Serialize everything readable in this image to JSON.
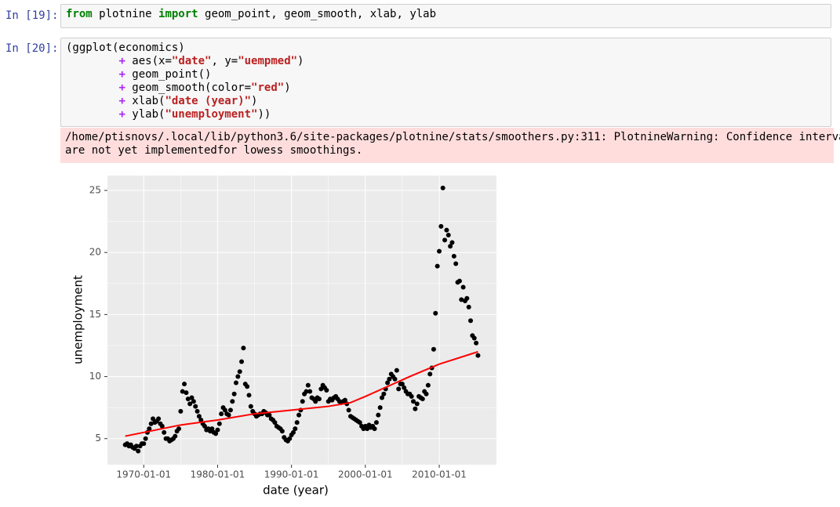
{
  "cells": [
    {
      "prompt": "In [19]:",
      "lines": [
        [
          {
            "text": "from",
            "color": "#008000"
          },
          {
            "text": " plotnine "
          },
          {
            "text": "import",
            "color": "#008000"
          },
          {
            "text": " geom_point, geom_smooth, xlab, ylab"
          }
        ]
      ]
    },
    {
      "prompt": "In [20]:",
      "lines": [
        [
          {
            "text": "(ggplot(economics)"
          }
        ],
        [
          {
            "text": "        "
          },
          {
            "text": "+",
            "color": "#aa22ff"
          },
          {
            "text": " aes(x="
          },
          {
            "text": "\"date\"",
            "color": "#ba2121"
          },
          {
            "text": ", y="
          },
          {
            "text": "\"uempmed\"",
            "color": "#ba2121"
          },
          {
            "text": ")"
          }
        ],
        [
          {
            "text": "        "
          },
          {
            "text": "+",
            "color": "#aa22ff"
          },
          {
            "text": " geom_point()"
          }
        ],
        [
          {
            "text": "        "
          },
          {
            "text": "+",
            "color": "#aa22ff"
          },
          {
            "text": " geom_smooth(color="
          },
          {
            "text": "\"red\"",
            "color": "#ba2121"
          },
          {
            "text": ")"
          }
        ],
        [
          {
            "text": "        "
          },
          {
            "text": "+",
            "color": "#aa22ff"
          },
          {
            "text": " xlab("
          },
          {
            "text": "\"date (year)\"",
            "color": "#ba2121"
          },
          {
            "text": ")"
          }
        ],
        [
          {
            "text": "        "
          },
          {
            "text": "+",
            "color": "#aa22ff"
          },
          {
            "text": " ylab("
          },
          {
            "text": "\"unemployment\"",
            "color": "#ba2121"
          },
          {
            "text": "))"
          }
        ]
      ],
      "warning": [
        "/home/ptisnovs/.local/lib/python3.6/site-packages/plotnine/stats/smoothers.py:311: PlotnineWarning: Confidence intervals",
        "are not yet implementedfor lowess smoothings."
      ]
    }
  ],
  "chart_data": {
    "type": "scatter",
    "xlabel": "date (year)",
    "ylabel": "unemployment",
    "xlim": [
      "1965-02-01",
      "2017-10-01"
    ],
    "ylim": [
      2.9,
      26.2
    ],
    "xticks": [
      "1970-01-01",
      "1980-01-01",
      "1990-01-01",
      "2000-01-01",
      "2010-01-01"
    ],
    "yticks": [
      5,
      10,
      15,
      20,
      25
    ],
    "grid": true,
    "background": "#ebebeb",
    "series": [
      {
        "color": "#000000",
        "x": [
          "1967-07-01",
          "1967-10-01",
          "1968-01-01",
          "1968-04-01",
          "1968-07-01",
          "1968-10-01",
          "1969-01-01",
          "1969-04-01",
          "1969-07-01",
          "1969-10-01",
          "1970-01-01",
          "1970-04-01",
          "1970-07-01",
          "1970-10-01",
          "1971-01-01",
          "1971-04-01",
          "1971-07-01",
          "1971-10-01",
          "1972-01-01",
          "1972-04-01",
          "1972-07-01",
          "1972-10-01",
          "1973-01-01",
          "1973-04-01",
          "1973-07-01",
          "1973-10-01",
          "1974-01-01",
          "1974-04-01",
          "1974-07-01",
          "1974-10-01",
          "1975-01-01",
          "1975-04-01",
          "1975-07-01",
          "1975-10-01",
          "1976-01-01",
          "1976-04-01",
          "1976-07-01",
          "1976-10-01",
          "1977-01-01",
          "1977-04-01",
          "1977-07-01",
          "1977-10-01",
          "1978-01-01",
          "1978-04-01",
          "1978-07-01",
          "1978-10-01",
          "1979-01-01",
          "1979-04-01",
          "1979-07-01",
          "1979-10-01",
          "1980-01-01",
          "1980-04-01",
          "1980-07-01",
          "1980-10-01",
          "1981-01-01",
          "1981-04-01",
          "1981-07-01",
          "1981-10-01",
          "1982-01-01",
          "1982-04-01",
          "1982-07-01",
          "1982-10-01",
          "1983-01-01",
          "1983-04-01",
          "1983-07-01",
          "1983-10-01",
          "1984-01-01",
          "1984-04-01",
          "1984-07-01",
          "1984-10-01",
          "1985-01-01",
          "1985-04-01",
          "1985-07-01",
          "1985-10-01",
          "1986-01-01",
          "1986-04-01",
          "1986-07-01",
          "1986-10-01",
          "1987-01-01",
          "1987-04-01",
          "1987-07-01",
          "1987-10-01",
          "1988-01-01",
          "1988-04-01",
          "1988-07-01",
          "1988-10-01",
          "1989-01-01",
          "1989-04-01",
          "1989-07-01",
          "1989-10-01",
          "1990-01-01",
          "1990-04-01",
          "1990-07-01",
          "1990-10-01",
          "1991-01-01",
          "1991-04-01",
          "1991-07-01",
          "1991-10-01",
          "1992-01-01",
          "1992-04-01",
          "1992-07-01",
          "1992-10-01",
          "1993-01-01",
          "1993-04-01",
          "1993-07-01",
          "1993-10-01",
          "1994-01-01",
          "1994-04-01",
          "1994-07-01",
          "1994-10-01",
          "1995-01-01",
          "1995-04-01",
          "1995-07-01",
          "1995-10-01",
          "1996-01-01",
          "1996-04-01",
          "1996-07-01",
          "1996-10-01",
          "1997-01-01",
          "1997-04-01",
          "1997-07-01",
          "1997-10-01",
          "1998-01-01",
          "1998-04-01",
          "1998-07-01",
          "1998-10-01",
          "1999-01-01",
          "1999-04-01",
          "1999-07-01",
          "1999-10-01",
          "2000-01-01",
          "2000-04-01",
          "2000-07-01",
          "2000-10-01",
          "2001-01-01",
          "2001-04-01",
          "2001-07-01",
          "2001-10-01",
          "2002-01-01",
          "2002-04-01",
          "2002-07-01",
          "2002-10-01",
          "2003-01-01",
          "2003-04-01",
          "2003-07-01",
          "2003-10-01",
          "2004-01-01",
          "2004-04-01",
          "2004-07-01",
          "2004-10-01",
          "2005-01-01",
          "2005-04-01",
          "2005-07-01",
          "2005-10-01",
          "2006-01-01",
          "2006-04-01",
          "2006-07-01",
          "2006-10-01",
          "2007-01-01",
          "2007-04-01",
          "2007-07-01",
          "2007-10-01",
          "2008-01-01",
          "2008-04-01",
          "2008-07-01",
          "2008-10-01",
          "2009-01-01",
          "2009-04-01",
          "2009-07-01",
          "2009-10-01",
          "2010-01-01",
          "2010-04-01",
          "2010-07-01",
          "2010-10-01",
          "2011-01-01",
          "2011-04-01",
          "2011-07-01",
          "2011-10-01",
          "2012-01-01",
          "2012-04-01",
          "2012-07-01",
          "2012-10-01",
          "2013-01-01",
          "2013-04-01",
          "2013-07-01",
          "2013-10-01",
          "2014-01-01",
          "2014-04-01",
          "2014-07-01",
          "2014-10-01",
          "2015-01-01",
          "2015-04-01"
        ],
        "values": [
          4.5,
          4.6,
          4.4,
          4.5,
          4.3,
          4.2,
          4.4,
          4.0,
          4.4,
          4.6,
          4.6,
          5.0,
          5.5,
          5.8,
          6.2,
          6.6,
          6.3,
          6.4,
          6.6,
          6.2,
          6.0,
          5.5,
          5.0,
          5.0,
          4.8,
          4.9,
          5.0,
          5.2,
          5.6,
          5.8,
          7.2,
          8.8,
          9.4,
          8.7,
          8.2,
          7.8,
          8.3,
          8.0,
          7.6,
          7.2,
          6.8,
          6.5,
          6.2,
          6.0,
          5.7,
          5.8,
          5.6,
          5.8,
          5.5,
          5.4,
          5.7,
          6.2,
          7.0,
          7.5,
          7.3,
          7.0,
          6.9,
          7.3,
          8.0,
          8.6,
          9.5,
          10.0,
          10.4,
          11.2,
          12.3,
          9.4,
          9.2,
          8.5,
          7.6,
          7.2,
          7.0,
          6.8,
          6.9,
          7.0,
          7.0,
          7.2,
          7.1,
          6.9,
          6.9,
          6.6,
          6.5,
          6.3,
          6.0,
          5.9,
          5.8,
          5.6,
          5.1,
          4.9,
          4.8,
          5.0,
          5.3,
          5.5,
          5.8,
          6.3,
          6.9,
          7.3,
          8.0,
          8.6,
          8.8,
          9.3,
          8.8,
          8.3,
          8.2,
          8.0,
          8.3,
          8.2,
          9.0,
          9.3,
          9.1,
          8.9,
          8.0,
          8.2,
          8.1,
          8.3,
          8.4,
          8.2,
          8.0,
          7.9,
          8.0,
          8.1,
          7.8,
          7.3,
          6.8,
          6.7,
          6.6,
          6.5,
          6.4,
          6.3,
          6.0,
          5.8,
          6.0,
          5.8,
          6.1,
          5.9,
          6.0,
          5.8,
          6.3,
          6.9,
          7.5,
          8.3,
          8.6,
          9.0,
          9.5,
          9.8,
          10.2,
          10.0,
          9.8,
          10.5,
          9.0,
          9.4,
          9.4,
          9.1,
          8.8,
          8.6,
          8.6,
          8.4,
          8.0,
          7.4,
          7.8,
          8.4,
          8.3,
          8.2,
          8.8,
          8.6,
          9.3,
          10.2,
          10.7,
          12.2,
          15.1,
          18.9,
          20.1,
          22.1,
          25.2,
          21.0,
          21.8,
          21.4,
          20.5,
          20.8,
          19.7,
          19.1,
          17.6,
          17.7,
          16.2,
          17.2,
          16.1,
          16.3,
          15.6,
          14.5,
          13.3,
          13.1,
          12.7,
          11.7
        ]
      },
      {
        "color": "#ff0000",
        "line": true,
        "x": [
          "1967-07-01",
          "1975-01-01",
          "1980-01-01",
          "1985-01-01",
          "1990-01-01",
          "1995-01-01",
          "1998-01-01",
          "2000-01-01",
          "2003-01-01",
          "2006-01-01",
          "2010-01-01",
          "2015-04-01"
        ],
        "values": [
          5.2,
          6.1,
          6.5,
          7.0,
          7.3,
          7.6,
          7.9,
          8.4,
          9.2,
          10.0,
          11.0,
          12.0
        ]
      }
    ]
  }
}
